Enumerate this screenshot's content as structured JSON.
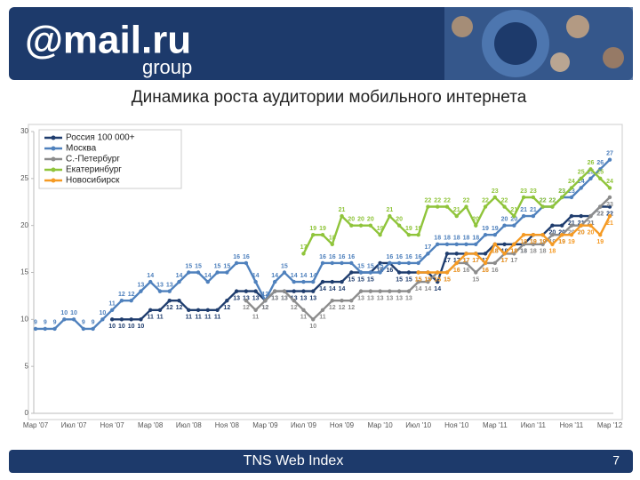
{
  "header": {
    "logo": "@mail.ru",
    "logo_sub": "group"
  },
  "footer": {
    "source": "TNS Web Index",
    "page": "7"
  },
  "chart_data": {
    "type": "line",
    "title": "Динамика роста аудитории мобильного интернета",
    "categories": [
      "Мар '07",
      null,
      null,
      null,
      "Июл '07",
      null,
      null,
      null,
      "Ноя '07",
      null,
      null,
      null,
      "Мар '08",
      null,
      null,
      null,
      "Июл '08",
      null,
      null,
      null,
      "Ноя '08",
      null,
      null,
      null,
      "Мар '09",
      null,
      null,
      null,
      "Июл '09",
      null,
      null,
      null,
      "Ноя '09",
      null,
      null,
      null,
      "Мар '10",
      null,
      null,
      null,
      "Июл '10",
      null,
      null,
      null,
      "Ноя '10",
      null,
      null,
      null,
      "Мар '11",
      null,
      null,
      null,
      "Июл '11",
      null,
      null,
      null,
      "Ноя '11",
      null,
      null,
      null,
      "Мар '12"
    ],
    "series": [
      {
        "name": "Россия 100 000+",
        "color": "#1f3d6e",
        "values": [
          null,
          null,
          null,
          null,
          null,
          null,
          null,
          null,
          10,
          10,
          10,
          10,
          11,
          11,
          12,
          12,
          11,
          11,
          11,
          11,
          12,
          13,
          13,
          13,
          12,
          13,
          13,
          13,
          13,
          13,
          14,
          14,
          14,
          15,
          15,
          15,
          16,
          16,
          15,
          15,
          15,
          15,
          14,
          17,
          17,
          17,
          17,
          17,
          18,
          18,
          18,
          18,
          19,
          19,
          20,
          20,
          21,
          21,
          21,
          22,
          22
        ]
      },
      {
        "name": "Москва",
        "color": "#4f81bd",
        "values": [
          9,
          9,
          9,
          10,
          10,
          9,
          9,
          10,
          11,
          12,
          12,
          13,
          14,
          13,
          13,
          14,
          15,
          15,
          14,
          15,
          15,
          16,
          16,
          14,
          12,
          14,
          15,
          14,
          14,
          14,
          16,
          16,
          16,
          16,
          15,
          15,
          15,
          16,
          16,
          16,
          16,
          17,
          18,
          18,
          18,
          18,
          18,
          19,
          19,
          20,
          20,
          21,
          21,
          22,
          22,
          23,
          23,
          24,
          25,
          26,
          27
        ]
      },
      {
        "name": "С.-Петербург",
        "color": "#8c8c8c",
        "values": [
          null,
          null,
          null,
          null,
          null,
          null,
          null,
          null,
          null,
          null,
          null,
          null,
          null,
          null,
          null,
          null,
          null,
          null,
          null,
          null,
          null,
          null,
          12,
          11,
          12,
          13,
          13,
          12,
          11,
          10,
          11,
          12,
          12,
          12,
          13,
          13,
          13,
          13,
          13,
          13,
          14,
          14,
          15,
          15,
          16,
          16,
          15,
          16,
          16,
          17,
          17,
          18,
          18,
          18,
          19,
          19,
          20,
          20,
          21,
          22,
          23
        ]
      },
      {
        "name": "Екатеринбург",
        "color": "#8fc43a",
        "values": [
          null,
          null,
          null,
          null,
          null,
          null,
          null,
          null,
          null,
          null,
          null,
          null,
          null,
          null,
          null,
          null,
          null,
          null,
          null,
          null,
          null,
          null,
          null,
          null,
          null,
          null,
          null,
          null,
          17,
          19,
          19,
          18,
          21,
          20,
          20,
          20,
          19,
          21,
          20,
          19,
          19,
          22,
          22,
          22,
          21,
          22,
          20,
          22,
          23,
          22,
          21,
          23,
          23,
          22,
          22,
          23,
          24,
          25,
          26,
          25,
          24
        ]
      },
      {
        "name": "Новосибирск",
        "color": "#f59a23",
        "values": [
          null,
          null,
          null,
          null,
          null,
          null,
          null,
          null,
          null,
          null,
          null,
          null,
          null,
          null,
          null,
          null,
          null,
          null,
          null,
          null,
          null,
          null,
          null,
          null,
          null,
          null,
          null,
          null,
          null,
          null,
          null,
          null,
          null,
          null,
          null,
          null,
          null,
          null,
          null,
          null,
          15,
          15,
          15,
          15,
          16,
          17,
          17,
          16,
          18,
          17,
          18,
          19,
          19,
          19,
          18,
          19,
          19,
          20,
          20,
          19,
          21
        ]
      }
    ],
    "ylim": [
      0,
      30
    ],
    "yticks": [
      0,
      5,
      10,
      15,
      20,
      25,
      30
    ],
    "grid": false,
    "legend": "top-left"
  }
}
